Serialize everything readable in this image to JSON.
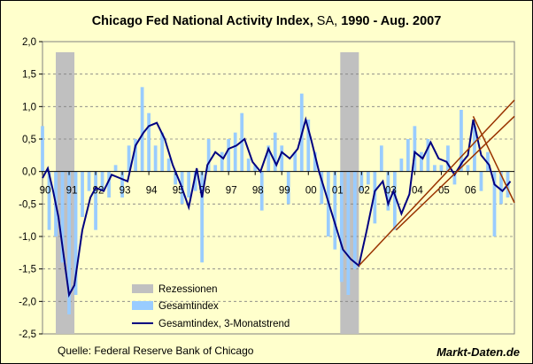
{
  "chart_data": {
    "type": "bar",
    "title": "Chicago Fed National Activity Index, SA, 1990 - Aug. 2007",
    "title_parts": {
      "main": "Chicago Fed National Activity Index,",
      "sa": "SA,",
      "range": "1990 - Aug. 2007"
    },
    "xlabel": "",
    "ylabel": "",
    "ylim": [
      -2.5,
      2.0
    ],
    "y_ticks": [
      "2,0",
      "1,5",
      "1,0",
      "0,5",
      "0,0",
      "-0,5",
      "-1,0",
      "-1,5",
      "-2,0",
      "-2,5"
    ],
    "y_tick_values": [
      2.0,
      1.5,
      1.0,
      0.5,
      0.0,
      -0.5,
      -1.0,
      -1.5,
      -2.0,
      -2.5
    ],
    "x_range": [
      1990.0,
      2007.75
    ],
    "x_ticks": [
      "90",
      "91",
      "92",
      "93",
      "94",
      "95",
      "96",
      "97",
      "98",
      "99",
      "00",
      "01",
      "02",
      "03",
      "04",
      "05",
      "06"
    ],
    "grid": true,
    "legend_placement": "bottom-left",
    "legend": [
      "Rezessionen",
      "Gesamtindex",
      "Gesamtindex, 3-Monatstrend"
    ],
    "recessions": [
      [
        1990.5,
        1991.2
      ],
      [
        2001.2,
        2001.9
      ]
    ],
    "trend_x": [
      1990.0,
      1990.2,
      1990.4,
      1990.6,
      1990.8,
      1991.0,
      1991.2,
      1991.5,
      1991.8,
      1992.0,
      1992.3,
      1992.6,
      1992.9,
      1993.2,
      1993.5,
      1993.8,
      1994.0,
      1994.3,
      1994.6,
      1994.9,
      1995.2,
      1995.5,
      1995.8,
      1996.0,
      1996.2,
      1996.5,
      1996.8,
      1997.0,
      1997.3,
      1997.6,
      1997.9,
      1998.2,
      1998.5,
      1998.8,
      1999.0,
      1999.3,
      1999.6,
      1999.9,
      2000.1,
      2000.4,
      2000.7,
      2001.0,
      2001.3,
      2001.6,
      2001.9,
      2002.2,
      2002.5,
      2002.8,
      2003.0,
      2003.2,
      2003.5,
      2003.8,
      2004.0,
      2004.3,
      2004.6,
      2004.9,
      2005.2,
      2005.5,
      2005.8,
      2006.0,
      2006.2,
      2006.5,
      2006.8,
      2007.0,
      2007.3,
      2007.6
    ],
    "trend_y": [
      -0.1,
      0.05,
      -0.3,
      -0.7,
      -1.3,
      -1.9,
      -1.75,
      -0.9,
      -0.4,
      -0.25,
      -0.3,
      -0.05,
      -0.1,
      -0.15,
      0.4,
      0.6,
      0.7,
      0.75,
      0.5,
      0.1,
      -0.2,
      -0.55,
      0.05,
      -0.4,
      0.1,
      0.3,
      0.2,
      0.35,
      0.4,
      0.5,
      0.15,
      0.0,
      0.35,
      0.1,
      0.3,
      0.2,
      0.35,
      0.8,
      0.5,
      0.0,
      -0.4,
      -0.8,
      -1.2,
      -1.35,
      -1.45,
      -0.9,
      -0.3,
      -0.15,
      -0.5,
      -0.3,
      -0.65,
      -0.35,
      0.3,
      0.2,
      0.45,
      0.2,
      0.15,
      -0.05,
      0.15,
      0.25,
      0.8,
      0.25,
      0.1,
      -0.2,
      -0.3,
      -0.15
    ],
    "monthly_x": [
      1990.0,
      1990.25,
      1990.5,
      1990.75,
      1991.0,
      1991.25,
      1991.5,
      1991.75,
      1992.0,
      1992.25,
      1992.5,
      1992.75,
      1993.0,
      1993.25,
      1993.5,
      1993.75,
      1994.0,
      1994.25,
      1994.5,
      1994.75,
      1995.0,
      1995.25,
      1995.5,
      1995.75,
      1996.0,
      1996.25,
      1996.5,
      1996.75,
      1997.0,
      1997.25,
      1997.5,
      1997.75,
      1998.0,
      1998.25,
      1998.5,
      1998.75,
      1999.0,
      1999.25,
      1999.5,
      1999.75,
      2000.0,
      2000.25,
      2000.5,
      2000.75,
      2001.0,
      2001.25,
      2001.5,
      2001.75,
      2002.0,
      2002.25,
      2002.5,
      2002.75,
      2003.0,
      2003.25,
      2003.5,
      2003.75,
      2004.0,
      2004.25,
      2004.5,
      2004.75,
      2005.0,
      2005.25,
      2005.5,
      2005.75,
      2006.0,
      2006.25,
      2006.5,
      2006.75,
      2007.0,
      2007.25,
      2007.5
    ],
    "monthly_y": [
      0.7,
      -0.9,
      -1.0,
      -1.4,
      -2.2,
      -1.9,
      -0.7,
      -0.3,
      -0.9,
      -0.3,
      -0.4,
      0.1,
      -0.4,
      0.4,
      0.5,
      1.3,
      0.9,
      0.4,
      0.6,
      0.2,
      -0.2,
      -0.5,
      -0.4,
      -0.3,
      -1.4,
      0.5,
      0.1,
      0.3,
      0.5,
      0.6,
      0.9,
      0.2,
      0.1,
      -0.6,
      0.4,
      0.6,
      0.4,
      -0.5,
      0.3,
      1.2,
      0.8,
      0.3,
      -0.5,
      -1.0,
      -1.2,
      -1.7,
      -1.9,
      -1.5,
      -0.3,
      -0.2,
      -0.8,
      0.4,
      -0.6,
      -0.9,
      0.2,
      0.5,
      0.7,
      0.3,
      0.5,
      0.1,
      0.1,
      0.4,
      -0.2,
      0.95,
      0.1,
      0.7,
      -0.3,
      0.3,
      -1.0,
      -0.5,
      -0.4
    ],
    "trendlines": [
      {
        "x": [
          2001.9,
          2007.75
        ],
        "y": [
          -1.45,
          1.1
        ]
      },
      {
        "x": [
          2003.3,
          2007.75
        ],
        "y": [
          -0.9,
          0.85
        ]
      },
      {
        "x": [
          2006.2,
          2007.75
        ],
        "y": [
          0.85,
          -0.48
        ]
      }
    ],
    "colors": {
      "recession": "#C0C0C0",
      "monthly": "#99CCFF",
      "trend": "#000080",
      "trendline": "#993300",
      "background": "#FFFFCC",
      "grid": "#808080"
    },
    "source": "Quelle: Federal Reserve Bank of Chicago",
    "brand": "Markt-Daten.de"
  }
}
